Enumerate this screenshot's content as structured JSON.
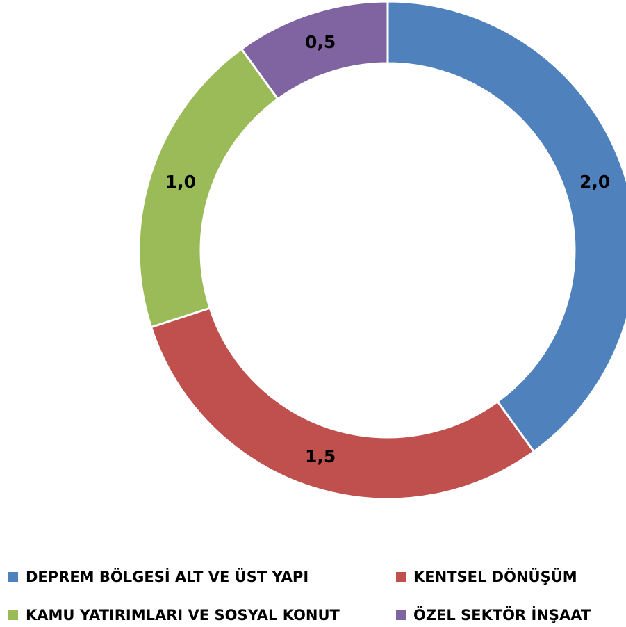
{
  "chart_data": {
    "type": "donut",
    "categories": [
      "DEPREM BÖLGESİ ALT VE ÜST YAPI",
      "KENTSEL DÖNÜŞÜM",
      "KAMU YATIRIMLARI VE SOSYAL KONUT",
      "ÖZEL SEKTÖR İNŞAAT"
    ],
    "values": [
      2.0,
      1.5,
      1.0,
      0.5
    ],
    "value_labels": [
      "2,0",
      "1,5",
      "1,0",
      "0,5"
    ],
    "colors": [
      "#4f81bd",
      "#c0504d",
      "#9bbb59",
      "#8064a2"
    ],
    "legend": "bottom"
  }
}
